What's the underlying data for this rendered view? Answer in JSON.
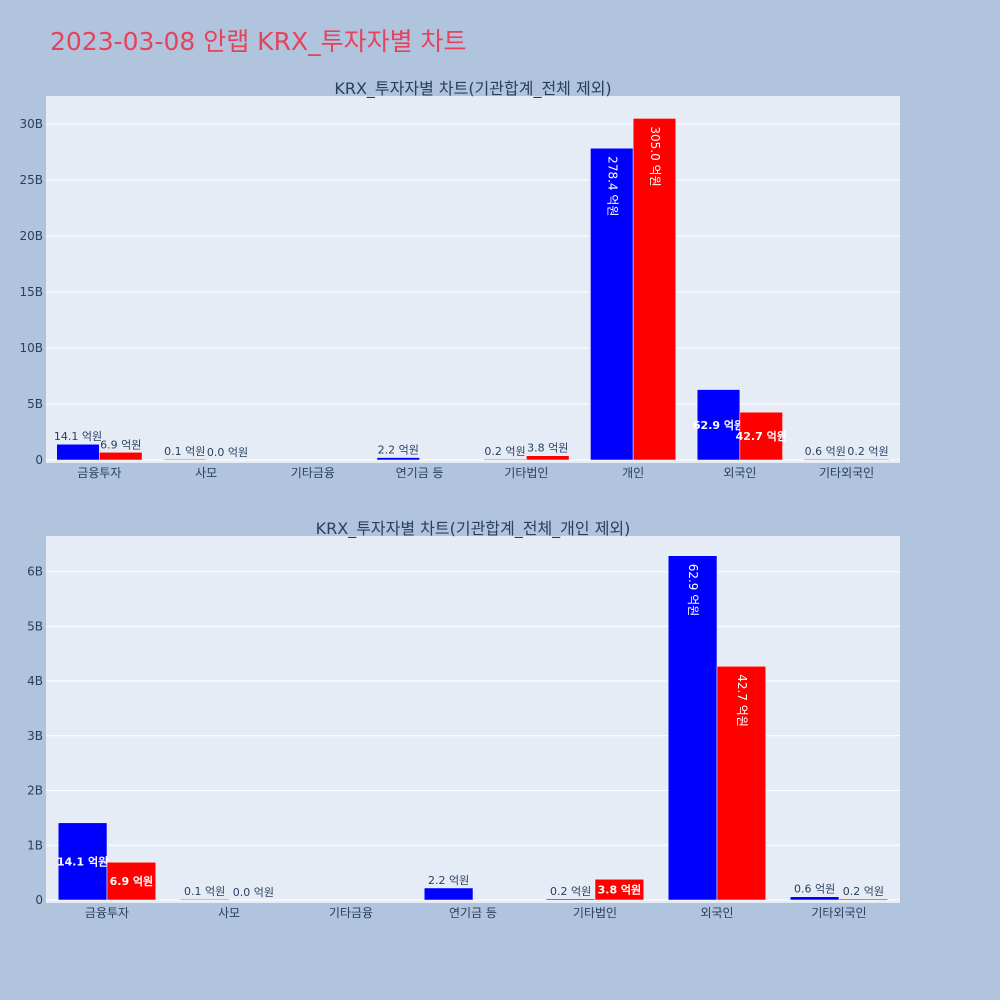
{
  "page_title": "2023-03-08 안랩 KRX_투자자별 차트",
  "colors": {
    "series_a": "#0000ff",
    "series_b": "#ff0000",
    "plot_bg": "#e5ecf6",
    "page_bg": "#b0c4de",
    "title": "#e8425a"
  },
  "chart_data": [
    {
      "type": "bar",
      "title": "KRX_투자자별 차트(기관합계_전체 제외)",
      "categories": [
        "금융투자",
        "사모",
        "기타금융",
        "연기금 등",
        "기타법인",
        "개인",
        "외국인",
        "기타외국인"
      ],
      "series": [
        {
          "color": "#0000ff",
          "values": [
            1410000000,
            10000000,
            0,
            220000000,
            20000000,
            27840000000,
            6290000000,
            60000000
          ],
          "labels": [
            "14.1 억원",
            "0.1 억원",
            "",
            "2.2 억원",
            "0.2 억원",
            "278.4 억원",
            "62.9 억원",
            "0.6 억원"
          ]
        },
        {
          "color": "#ff0000",
          "values": [
            690000000,
            0,
            0,
            0,
            380000000,
            30500000000,
            4270000000,
            20000000
          ],
          "labels": [
            "6.9 억원",
            "0.0 억원",
            "",
            "",
            "3.8 억원",
            "305.0 억원",
            "42.7 억원",
            "0.2 억원"
          ]
        }
      ],
      "yticks": [
        "0",
        "5B",
        "10B",
        "15B",
        "20B",
        "25B",
        "30B"
      ],
      "ytick_values": [
        0,
        5000000000,
        10000000000,
        15000000000,
        20000000000,
        25000000000,
        30000000000
      ],
      "ylim": [
        0,
        32500000000
      ],
      "grid": true
    },
    {
      "type": "bar",
      "title": "KRX_투자자별 차트(기관합계_전체_개인 제외)",
      "categories": [
        "금융투자",
        "사모",
        "기타금융",
        "연기금 등",
        "기타법인",
        "외국인",
        "기타외국인"
      ],
      "series": [
        {
          "color": "#0000ff",
          "values": [
            1410000000,
            10000000,
            0,
            220000000,
            20000000,
            6290000000,
            60000000
          ],
          "labels": [
            "14.1 억원",
            "0.1 억원",
            "",
            "2.2 억원",
            "0.2 억원",
            "62.9 억원",
            "0.6 억원"
          ]
        },
        {
          "color": "#ff0000",
          "values": [
            690000000,
            0,
            0,
            0,
            380000000,
            4270000000,
            20000000
          ],
          "labels": [
            "6.9 억원",
            "0.0 억원",
            "",
            "",
            "3.8 억원",
            "42.7 억원",
            "0.2 억원"
          ]
        }
      ],
      "yticks": [
        "0",
        "1B",
        "2B",
        "3B",
        "4B",
        "5B",
        "6B"
      ],
      "ytick_values": [
        0,
        1000000000,
        2000000000,
        3000000000,
        4000000000,
        5000000000,
        6000000000
      ],
      "ylim": [
        0,
        6650000000
      ],
      "grid": true
    }
  ]
}
